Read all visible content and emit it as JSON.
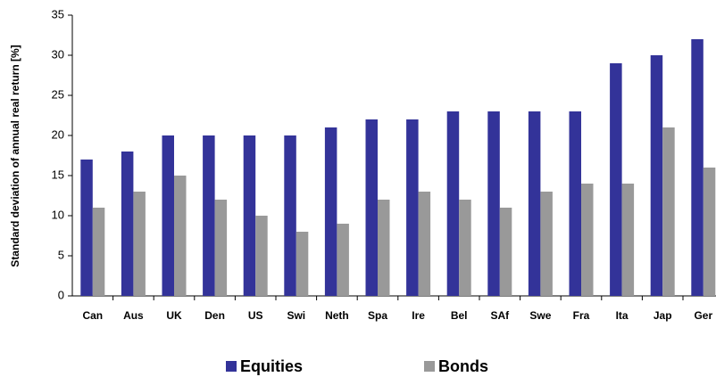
{
  "chart_data": {
    "type": "bar",
    "y_axis_label": "Standard deviation of annual real return [%]",
    "categories": [
      "Can",
      "Aus",
      "UK",
      "Den",
      "US",
      "Swi",
      "Neth",
      "Spa",
      "Ire",
      "Bel",
      "SAf",
      "Swe",
      "Fra",
      "Ita",
      "Jap",
      "Ger"
    ],
    "series": [
      {
        "name": "Equities",
        "color": "#333399",
        "values": [
          17,
          18,
          20,
          20,
          20,
          20,
          21,
          22,
          22,
          23,
          23,
          23,
          23,
          29,
          30,
          32
        ]
      },
      {
        "name": "Bonds",
        "color": "#999999",
        "values": [
          11,
          13,
          15,
          12,
          10,
          8,
          9,
          12,
          13,
          12,
          11,
          13,
          14,
          14,
          21,
          16
        ]
      }
    ],
    "ylim": [
      0,
      35
    ],
    "yticks": [
      0,
      5,
      10,
      15,
      20,
      25,
      30,
      35
    ],
    "grid": false
  }
}
